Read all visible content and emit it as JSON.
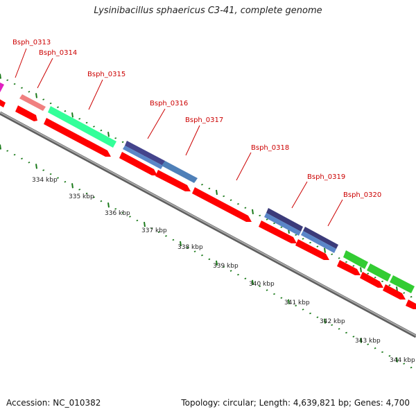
{
  "title": "Lysinibacillus sphaericus C3-41, complete genome",
  "footer": {
    "accession": "Accession: NC_010382",
    "summary": "Topology: circular; Length: 4,639,821 bp; Genes: 4,700"
  },
  "colors": {
    "backbone": "#8c8c8c",
    "forward_cds": "#ff0000",
    "label": "#cc0000",
    "gc_ticks": "#1a7a1a"
  },
  "gene_labels": [
    "Bsph_0313",
    "Bsph_0314",
    "Bsph_0315",
    "Bsph_0316",
    "Bsph_0317",
    "Bsph_0318",
    "Bsph_0319",
    "Bsph_0320"
  ],
  "scale_labels": [
    "334 kbp",
    "335 kbp",
    "336 kbp",
    "337 kbp",
    "338 kbp",
    "339 kbp",
    "340 kbp",
    "341 kbp",
    "342 kbp",
    "343 kbp",
    "344 kbp"
  ]
}
